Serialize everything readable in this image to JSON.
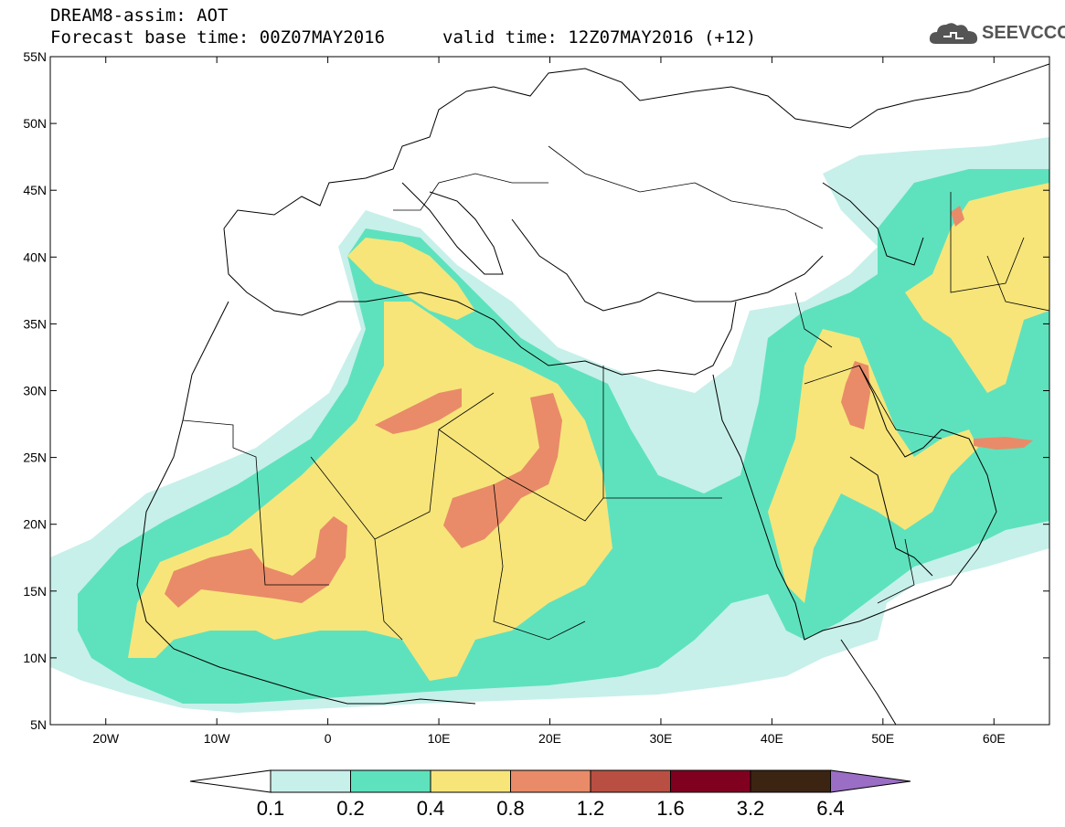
{
  "header": {
    "title": "DREAM8-assim: AOT",
    "base_time": "Forecast base time: 00Z07MAY2016",
    "valid_time": "valid time: 12Z07MAY2016 (+12)"
  },
  "logo": {
    "text": "SEEVCCC",
    "icon": "cloud-icon"
  },
  "axes": {
    "lat_labels": [
      "5N",
      "10N",
      "15N",
      "20N",
      "25N",
      "30N",
      "35N",
      "40N",
      "45N",
      "50N",
      "55N"
    ],
    "lon_labels": [
      "20W",
      "10W",
      "0",
      "10E",
      "20E",
      "30E",
      "40E",
      "50E",
      "60E"
    ],
    "lat_range": [
      5,
      55
    ],
    "lon_range": [
      -25,
      65
    ]
  },
  "colorbar": {
    "labels": [
      "0.1",
      "0.2",
      "0.4",
      "0.8",
      "1.2",
      "1.6",
      "3.2",
      "6.4"
    ],
    "colors": [
      "#ffffff",
      "#c7f0ea",
      "#5ee2bd",
      "#f7e57a",
      "#e98b68",
      "#b94f42",
      "#800020",
      "#3b2412",
      "#9a6ec4"
    ]
  },
  "map_colors": {
    "level_01": "#c7f0ea",
    "level_02": "#5ee2bd",
    "level_04": "#f7e57a",
    "level_08": "#e98b68"
  }
}
